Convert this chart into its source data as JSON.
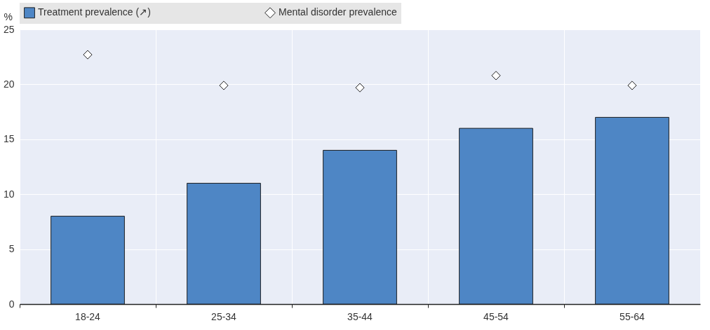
{
  "chart_data": {
    "type": "bar",
    "ylabel": "%",
    "categories": [
      "18-24",
      "25-34",
      "35-44",
      "45-54",
      "55-64"
    ],
    "series": [
      {
        "name": "Treatment prevalence (↗)",
        "color": "#4e86c5",
        "values": [
          8,
          11,
          14,
          16,
          17
        ]
      },
      {
        "name": "Mental disorder prevalence",
        "type": "scatter",
        "marker": "diamond",
        "color": "#ffffff",
        "values": [
          22.7,
          19.9,
          19.7,
          20.8,
          19.9
        ]
      }
    ],
    "ylim": [
      0,
      25
    ],
    "yticks": [
      0,
      5,
      10,
      15,
      20,
      25
    ],
    "grid": true,
    "legend": "top"
  }
}
